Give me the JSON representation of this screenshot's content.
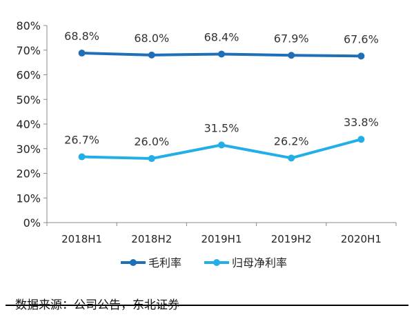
{
  "chart_data": {
    "type": "line",
    "categories": [
      "2018H1",
      "2018H2",
      "2019H1",
      "2019H2",
      "2020H1"
    ],
    "series": [
      {
        "name": "毛利率",
        "values": [
          68.8,
          68.0,
          68.4,
          67.9,
          67.6
        ],
        "labels": [
          "68.8%",
          "68.0%",
          "68.4%",
          "67.9%",
          "67.6%"
        ],
        "color": "#1f6fb8"
      },
      {
        "name": "归母净利率",
        "values": [
          26.7,
          26.0,
          31.5,
          26.2,
          33.8
        ],
        "labels": [
          "26.7%",
          "26.0%",
          "31.5%",
          "26.2%",
          "33.8%"
        ],
        "color": "#22aee6"
      }
    ],
    "ylim": [
      0,
      80
    ],
    "yticks": [
      "0%",
      "10%",
      "20%",
      "30%",
      "40%",
      "50%",
      "60%",
      "70%",
      "80%"
    ],
    "grid": false,
    "legend": "bottom"
  },
  "source": "数据来源：公司公告，东北证券"
}
